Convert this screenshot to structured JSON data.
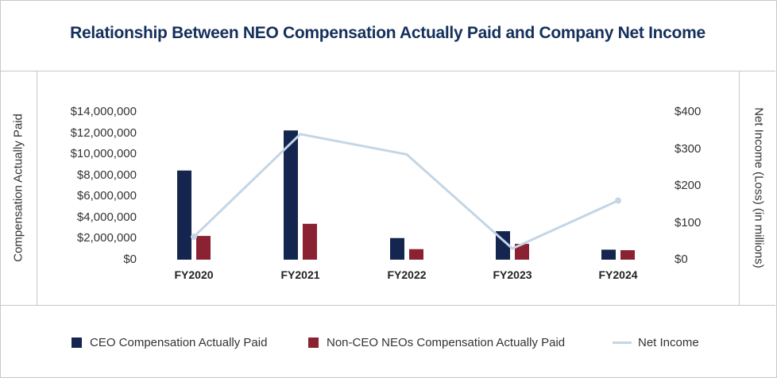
{
  "chart_data": {
    "type": "bar",
    "title": "Relationship Between NEO Compensation Actually Paid and Company Net Income",
    "ylabel": "Compensation Actually Paid",
    "y2label": "Net Income (Loss) (in millions)",
    "categories": [
      "FY2020",
      "FY2021",
      "FY2022",
      "FY2023",
      "FY2024"
    ],
    "ylim": [
      0,
      14000000
    ],
    "y2lim": [
      0,
      400
    ],
    "yticks": [
      "$0",
      "$2,000,000",
      "$4,000,000",
      "$6,000,000",
      "$8,000,000",
      "$10,000,000",
      "$12,000,000",
      "$14,000,000"
    ],
    "y2ticks": [
      "$0",
      "$100",
      "$200",
      "$300",
      "$400"
    ],
    "series": [
      {
        "name": "CEO Compensation Actually Paid",
        "type": "bar",
        "axis": "left",
        "color": "#14264f",
        "values": [
          8450000,
          12250000,
          2050000,
          2700000,
          950000
        ]
      },
      {
        "name": "Non-CEO NEOs Compensation Actually Paid",
        "type": "bar",
        "axis": "left",
        "color": "#8b2232",
        "values": [
          2250000,
          3400000,
          1000000,
          1500000,
          900000
        ]
      },
      {
        "name": "Net Income",
        "type": "line",
        "axis": "right",
        "color": "#c4d6e6",
        "values": [
          62,
          340,
          285,
          30,
          160
        ]
      }
    ],
    "legend": "bottom",
    "grid": false
  }
}
